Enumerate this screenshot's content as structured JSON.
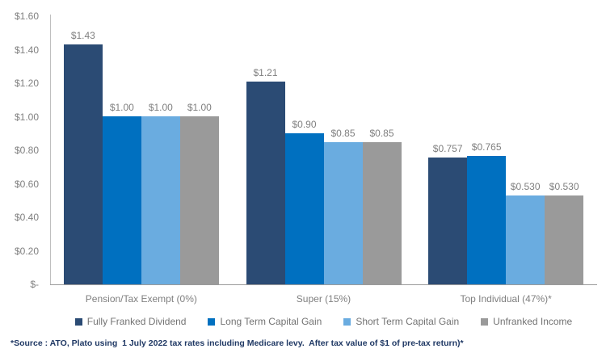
{
  "colors": {
    "background": "#ffffff",
    "axis_text": "#808080",
    "data_label_text": "#7f7f7f",
    "category_text": "#7f7f7f",
    "legend_text": "#737373",
    "vertical_axis_line": "#bfbfbf",
    "baseline": "#9b9b9b",
    "footnote_text": "#1f3864"
  },
  "chart_data": {
    "type": "bar",
    "title": "",
    "xlabel": "",
    "ylabel": "",
    "categories": [
      "Pension/Tax Exempt (0%)",
      "Super (15%)",
      "Top Individual (47%)*"
    ],
    "series": [
      {
        "name": "Fully Franked Dividend",
        "color": "#2b4b74",
        "values": [
          1.43,
          1.21,
          0.757
        ],
        "labels": [
          "$1.43",
          "$1.21",
          "$0.757"
        ]
      },
      {
        "name": "Long Term Capital Gain",
        "color": "#0070c0",
        "values": [
          1.0,
          0.9,
          0.765
        ],
        "labels": [
          "$1.00",
          "$0.90",
          "$0.765"
        ]
      },
      {
        "name": "Short Term Capital Gain",
        "color": "#6aace0",
        "values": [
          1.0,
          0.85,
          0.53
        ],
        "labels": [
          "$1.00",
          "$0.85",
          "$0.530"
        ]
      },
      {
        "name": "Unfranked Income",
        "color": "#9a9a9a",
        "values": [
          1.0,
          0.85,
          0.53
        ],
        "labels": [
          "$1.00",
          "$0.85",
          "$0.530"
        ]
      }
    ],
    "y_axis": {
      "min": 0,
      "max": 1.6,
      "tick_labels": [
        "$1.60",
        "$1.40",
        "$1.20",
        "$1.00",
        "$0.80",
        "$0.60",
        "$0.40",
        "$0.20",
        "$-"
      ]
    },
    "grid": false,
    "legend_position": "bottom"
  },
  "footnote": "*Source : ATO, Plato using  1 July 2022 tax rates including Medicare levy.  After tax value of $1 of pre-tax return)*"
}
